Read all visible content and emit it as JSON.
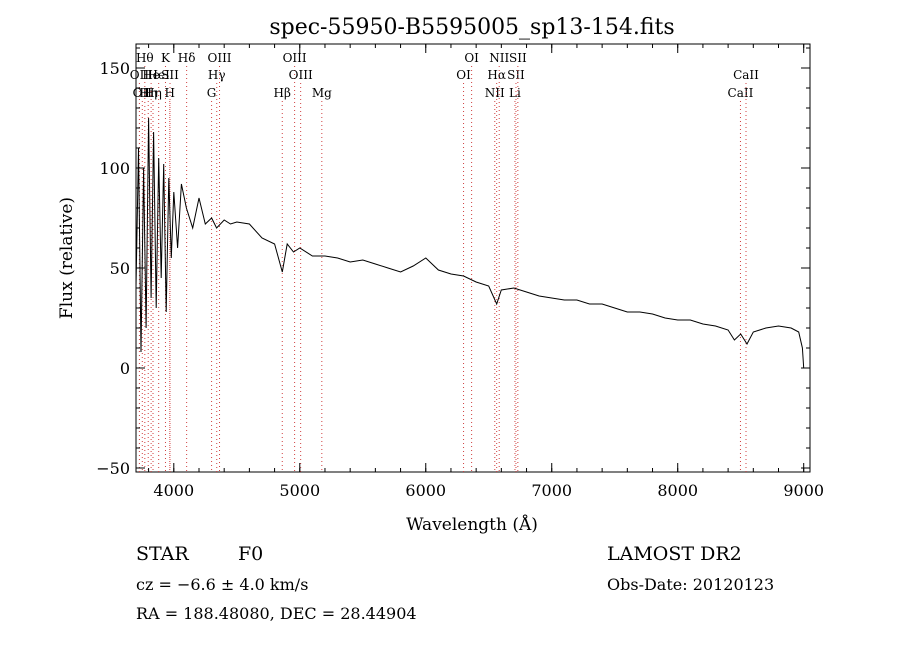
{
  "chart_data": {
    "type": "line",
    "title": "spec-55950-B5595005_sp13-154.fits",
    "xlabel": "Wavelength (Å)",
    "ylabel": "Flux (relative)",
    "xlim": [
      3700,
      9050
    ],
    "ylim": [
      -52,
      162
    ],
    "x_ticks": [
      4000,
      5000,
      6000,
      7000,
      8000,
      9000
    ],
    "x_tick_labels": [
      "4000",
      "5000",
      "6000",
      "7000",
      "8000",
      "9000"
    ],
    "y_ticks": [
      -50,
      0,
      50,
      100,
      150
    ],
    "y_tick_labels": [
      "−50",
      "0",
      "50",
      "100",
      "150"
    ],
    "grid": false,
    "line_color": "#000000",
    "marker_color": "#d04040",
    "series": [
      {
        "x": [
          3700,
          3720,
          3740,
          3760,
          3780,
          3800,
          3820,
          3840,
          3860,
          3880,
          3900,
          3920,
          3940,
          3960,
          3980,
          4000,
          4030,
          4060,
          4100,
          4150,
          4200,
          4250,
          4300,
          4340,
          4400,
          4450,
          4500,
          4600,
          4700,
          4800,
          4861,
          4900,
          4950,
          5000,
          5100,
          5200,
          5300,
          5400,
          5500,
          5600,
          5700,
          5800,
          5900,
          6000,
          6100,
          6200,
          6300,
          6400,
          6500,
          6563,
          6600,
          6700,
          6800,
          6900,
          7000,
          7100,
          7200,
          7300,
          7400,
          7500,
          7600,
          7700,
          7800,
          7900,
          8000,
          8100,
          8200,
          8300,
          8400,
          8450,
          8500,
          8550,
          8600,
          8700,
          8800,
          8900,
          8960,
          8990,
          9000
        ],
        "y": [
          40,
          110,
          8,
          100,
          20,
          125,
          35,
          118,
          30,
          105,
          45,
          102,
          28,
          95,
          55,
          88,
          60,
          92,
          80,
          70,
          85,
          72,
          75,
          70,
          74,
          72,
          73,
          72,
          65,
          62,
          48,
          62,
          58,
          60,
          56,
          56,
          55,
          53,
          54,
          52,
          50,
          48,
          51,
          55,
          49,
          47,
          46,
          43,
          41,
          32,
          39,
          40,
          38,
          36,
          35,
          34,
          34,
          32,
          32,
          30,
          28,
          28,
          27,
          25,
          24,
          24,
          22,
          21,
          19,
          14,
          17,
          12,
          18,
          20,
          21,
          20,
          18,
          10,
          0
        ]
      }
    ],
    "line_markers": [
      {
        "x": 3727,
        "label": "OII",
        "row": 2
      },
      {
        "x": 3750,
        "label": "OII",
        "row": 3
      },
      {
        "x": 3770,
        "label": "Hθ",
        "row": 1
      },
      {
        "x": 3797,
        "label": "Hη",
        "row": 3
      },
      {
        "x": 3820,
        "label": "He",
        "row": 2
      },
      {
        "x": 3835,
        "label": "Hη",
        "row": 3
      },
      {
        "x": 3880,
        "label": "HeI",
        "row": 2
      },
      {
        "x": 3934,
        "label": "K",
        "row": 1
      },
      {
        "x": 3968,
        "label": "H",
        "row": 3
      },
      {
        "x": 3970,
        "label": "SII",
        "row": 2
      },
      {
        "x": 4102,
        "label": "Hδ",
        "row": 1
      },
      {
        "x": 4300,
        "label": "G",
        "row": 3
      },
      {
        "x": 4341,
        "label": "Hγ",
        "row": 2
      },
      {
        "x": 4363,
        "label": "OIII",
        "row": 1
      },
      {
        "x": 4861,
        "label": "Hβ",
        "row": 3
      },
      {
        "x": 4959,
        "label": "OIII",
        "row": 1
      },
      {
        "x": 5007,
        "label": "OIII",
        "row": 2
      },
      {
        "x": 5175,
        "label": "Mg",
        "row": 3
      },
      {
        "x": 6300,
        "label": "OI",
        "row": 2
      },
      {
        "x": 6364,
        "label": "OI",
        "row": 1
      },
      {
        "x": 6548,
        "label": "NII",
        "row": 3
      },
      {
        "x": 6563,
        "label": "Hα",
        "row": 2
      },
      {
        "x": 6583,
        "label": "NII",
        "row": 1
      },
      {
        "x": 6708,
        "label": "Li",
        "row": 3
      },
      {
        "x": 6716,
        "label": "SII",
        "row": 2
      },
      {
        "x": 6731,
        "label": "SII",
        "row": 1
      },
      {
        "x": 8498,
        "label": "CaII",
        "row": 3
      },
      {
        "x": 8542,
        "label": "CaII",
        "row": 2
      }
    ]
  },
  "info": {
    "object_class": "STAR",
    "subclass": "F0",
    "redshift": "cz = −6.6 ± 4.0 km/s",
    "coords": "RA = 188.48080, DEC =  28.44904",
    "survey": "LAMOST DR2",
    "obs_date": "Obs-Date: 20120123"
  }
}
